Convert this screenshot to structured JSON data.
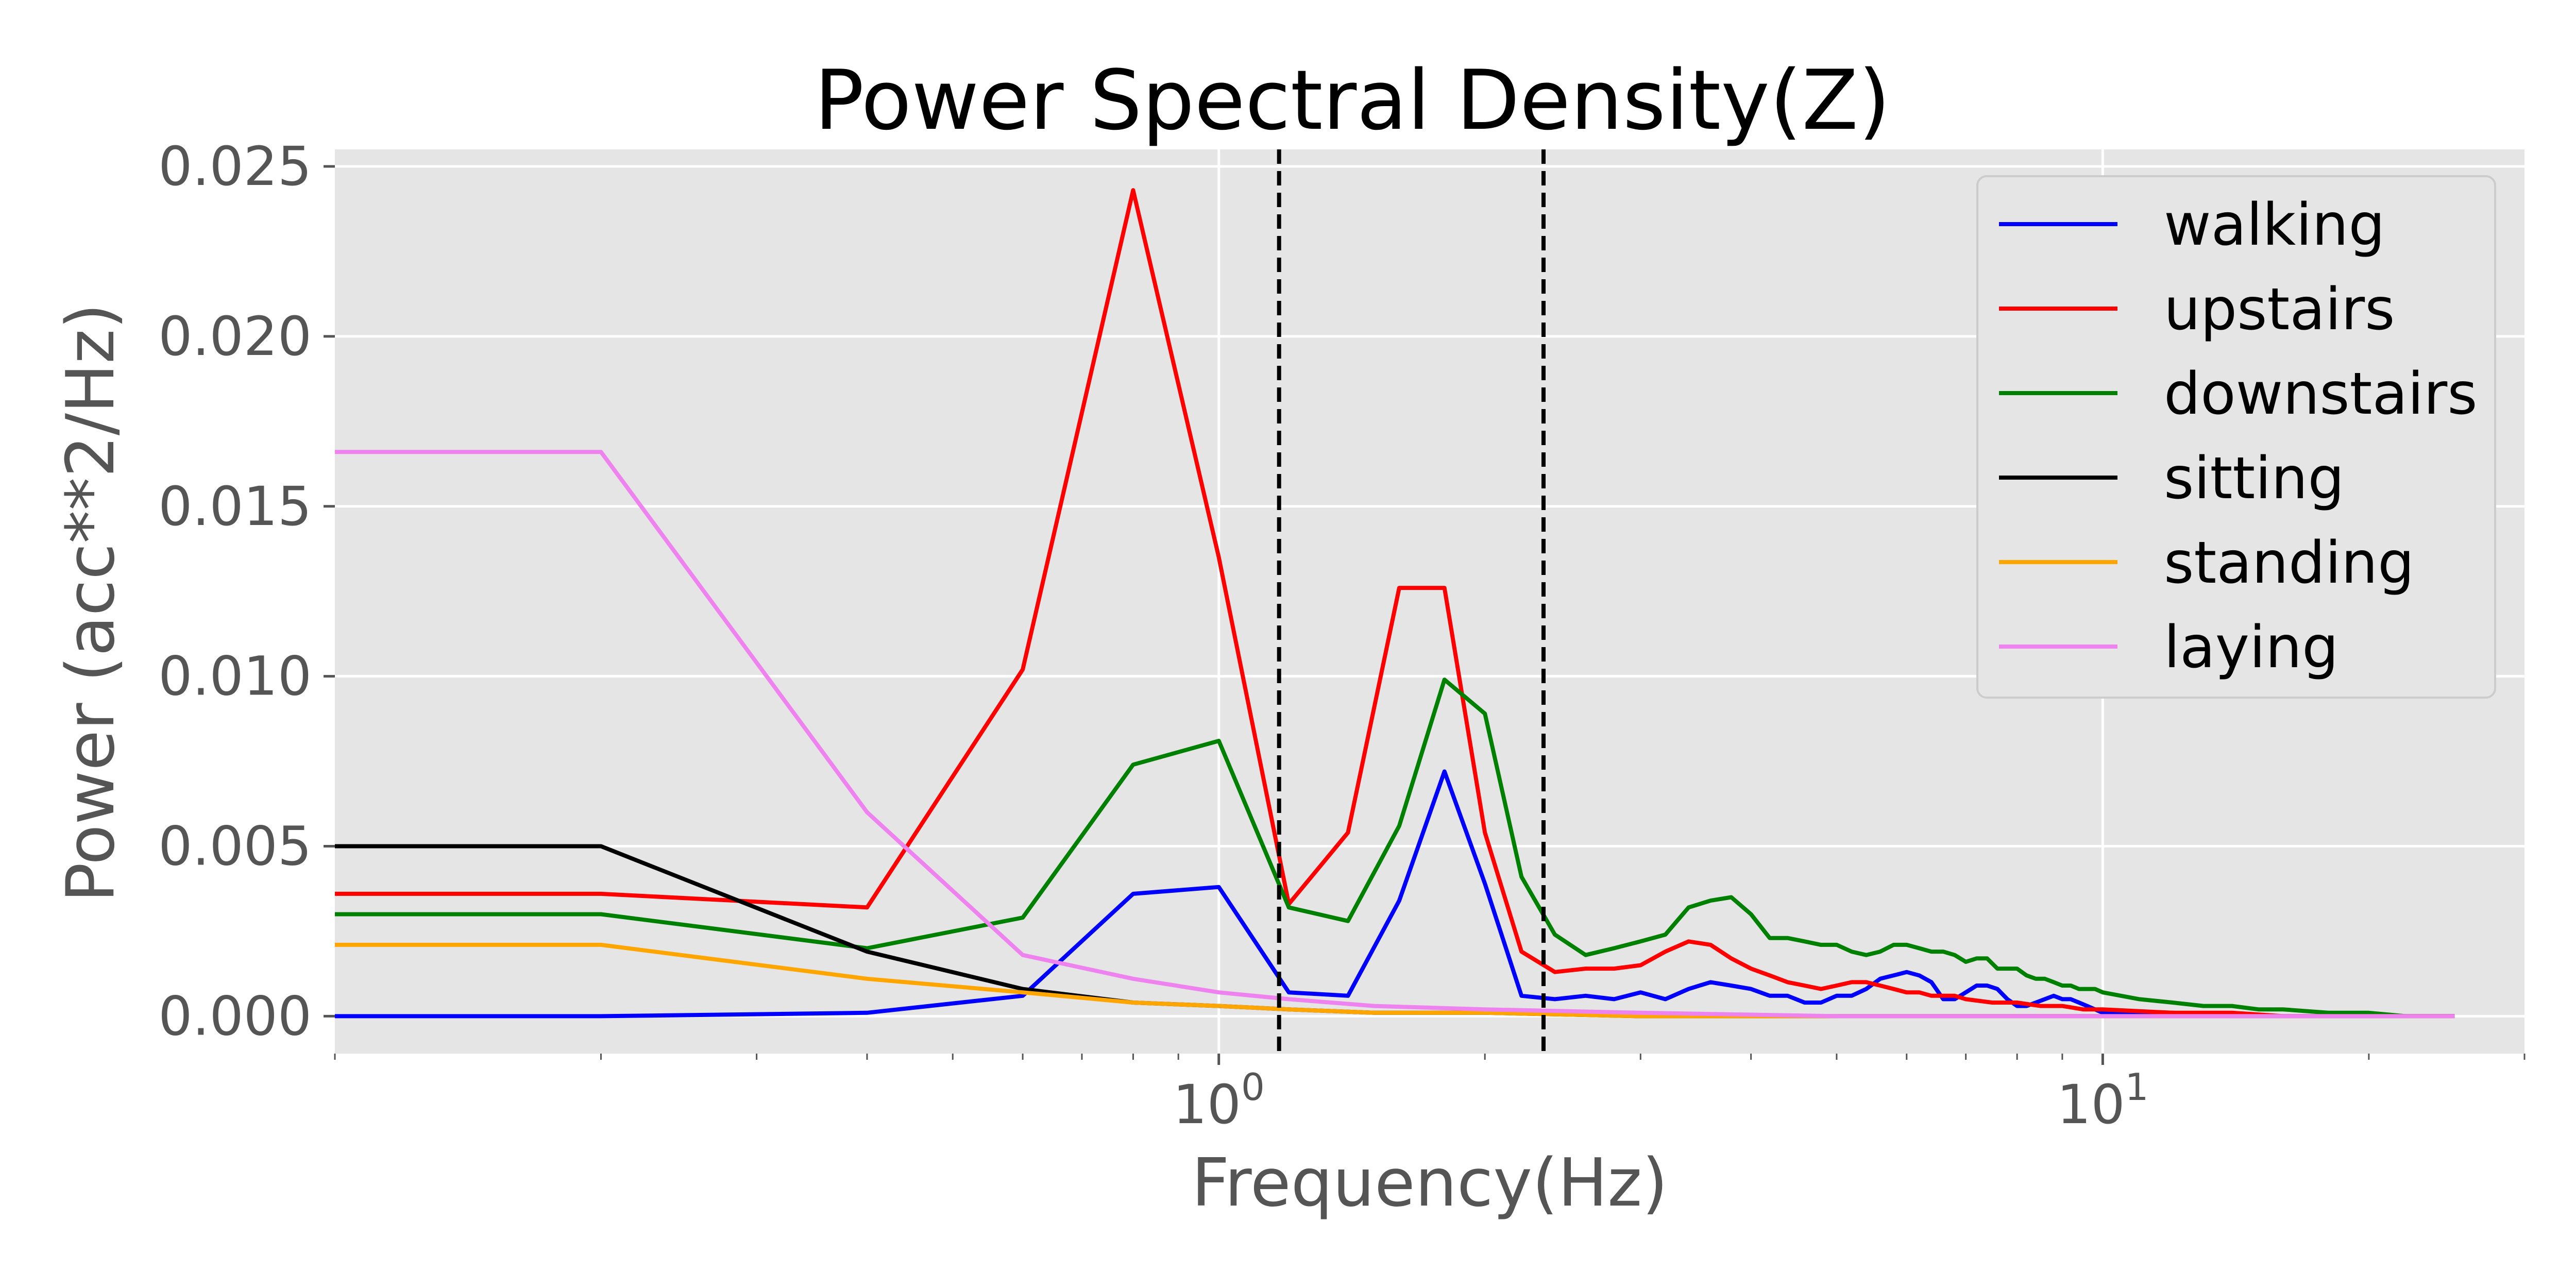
{
  "chart_data": {
    "type": "line",
    "title": "Power Spectral Density(Z)",
    "xlabel": "Frequency(Hz)",
    "ylabel": "Power (acc**2/Hz)",
    "x_scale": "log",
    "xlim": [
      0.1,
      30
    ],
    "ylim": [
      -0.0011,
      0.0255
    ],
    "yticks": [
      0.0,
      0.005,
      0.01,
      0.015,
      0.02,
      0.025
    ],
    "ytick_labels": [
      "0.000",
      "0.005",
      "0.010",
      "0.015",
      "0.020",
      "0.025"
    ],
    "xtick_labels": [
      {
        "value": 1,
        "base": "10",
        "exp": "0"
      },
      {
        "value": 10,
        "base": "10",
        "exp": "1"
      }
    ],
    "vlines": [
      1.17,
      2.33
    ],
    "grid": true,
    "legend_position": "top-right",
    "series": [
      {
        "name": "walking",
        "color": "#0000ff",
        "x": [
          0.1,
          0.2,
          0.4,
          0.6,
          0.8,
          1.0,
          1.2,
          1.4,
          1.6,
          1.8,
          2.0,
          2.2,
          2.4,
          2.6,
          2.8,
          3.0,
          3.2,
          3.4,
          3.6,
          3.8,
          4.0,
          4.2,
          4.4,
          4.6,
          4.8,
          5.0,
          5.2,
          5.4,
          5.6,
          5.8,
          6.0,
          6.2,
          6.4,
          6.6,
          6.8,
          7.0,
          7.2,
          7.4,
          7.6,
          7.8,
          8.0,
          8.2,
          8.4,
          8.6,
          8.8,
          9.0,
          9.2,
          9.4,
          9.6,
          9.8,
          10,
          12,
          14,
          16,
          18,
          20,
          22,
          25
        ],
        "y": [
          0.0,
          0.0,
          0.0001,
          0.0006,
          0.0036,
          0.0038,
          0.0007,
          0.0006,
          0.0034,
          0.0072,
          0.0039,
          0.0006,
          0.0005,
          0.0006,
          0.0005,
          0.0007,
          0.0005,
          0.0008,
          0.001,
          0.0009,
          0.0008,
          0.0006,
          0.0006,
          0.0004,
          0.0004,
          0.0006,
          0.0006,
          0.0008,
          0.0011,
          0.0012,
          0.0013,
          0.0012,
          0.001,
          0.0005,
          0.0005,
          0.0007,
          0.0009,
          0.0009,
          0.0008,
          0.0005,
          0.0003,
          0.0003,
          0.0004,
          0.0005,
          0.0006,
          0.0005,
          0.0005,
          0.0004,
          0.0003,
          0.0002,
          0.0001,
          0.0001,
          0.0,
          0.0,
          0.0,
          0.0,
          0.0,
          0.0
        ]
      },
      {
        "name": "upstairs",
        "color": "#ff0000",
        "x": [
          0.1,
          0.2,
          0.4,
          0.6,
          0.8,
          1.0,
          1.2,
          1.4,
          1.6,
          1.8,
          2.0,
          2.2,
          2.4,
          2.6,
          2.8,
          3.0,
          3.2,
          3.4,
          3.6,
          3.8,
          4.0,
          4.2,
          4.4,
          4.6,
          4.8,
          5.0,
          5.2,
          5.4,
          5.6,
          5.8,
          6.0,
          6.2,
          6.4,
          6.6,
          6.8,
          7.0,
          7.5,
          8.0,
          8.5,
          9.0,
          9.5,
          10,
          12,
          14,
          16,
          18,
          20,
          22,
          25
        ],
        "y": [
          0.0036,
          0.0036,
          0.0032,
          0.0102,
          0.0243,
          0.0135,
          0.0033,
          0.0054,
          0.0126,
          0.0126,
          0.0054,
          0.0019,
          0.0013,
          0.0014,
          0.0014,
          0.0015,
          0.0019,
          0.0022,
          0.0021,
          0.0017,
          0.0014,
          0.0012,
          0.001,
          0.0009,
          0.0008,
          0.0009,
          0.001,
          0.001,
          0.0009,
          0.0008,
          0.0007,
          0.0007,
          0.0006,
          0.0006,
          0.0006,
          0.0005,
          0.0004,
          0.0004,
          0.0003,
          0.0003,
          0.0002,
          0.0002,
          0.0001,
          0.0001,
          0.0,
          0.0,
          0.0,
          0.0,
          0.0
        ]
      },
      {
        "name": "downstairs",
        "color": "#008000",
        "x": [
          0.1,
          0.2,
          0.4,
          0.6,
          0.8,
          1.0,
          1.2,
          1.4,
          1.6,
          1.8,
          2.0,
          2.2,
          2.4,
          2.6,
          2.8,
          3.0,
          3.2,
          3.4,
          3.6,
          3.8,
          4.0,
          4.2,
          4.4,
          4.6,
          4.8,
          5.0,
          5.2,
          5.4,
          5.6,
          5.8,
          6.0,
          6.2,
          6.4,
          6.6,
          6.8,
          7.0,
          7.2,
          7.4,
          7.6,
          7.8,
          8.0,
          8.2,
          8.4,
          8.6,
          8.8,
          9.0,
          9.2,
          9.4,
          9.6,
          9.8,
          10,
          11,
          12,
          13,
          14,
          15,
          16,
          18,
          20,
          22,
          25
        ],
        "y": [
          0.003,
          0.003,
          0.002,
          0.0029,
          0.0074,
          0.0081,
          0.0032,
          0.0028,
          0.0056,
          0.0099,
          0.0089,
          0.0041,
          0.0024,
          0.0018,
          0.002,
          0.0022,
          0.0024,
          0.0032,
          0.0034,
          0.0035,
          0.003,
          0.0023,
          0.0023,
          0.0022,
          0.0021,
          0.0021,
          0.0019,
          0.0018,
          0.0019,
          0.0021,
          0.0021,
          0.002,
          0.0019,
          0.0019,
          0.0018,
          0.0016,
          0.0017,
          0.0017,
          0.0014,
          0.0014,
          0.0014,
          0.0012,
          0.0011,
          0.0011,
          0.001,
          0.0009,
          0.0009,
          0.0008,
          0.0008,
          0.0008,
          0.0007,
          0.0005,
          0.0004,
          0.0003,
          0.0003,
          0.0002,
          0.0002,
          0.0001,
          0.0001,
          0.0,
          0.0
        ]
      },
      {
        "name": "sitting",
        "color": "#000000",
        "x": [
          0.1,
          0.2,
          0.4,
          0.6,
          0.8,
          1.0,
          1.2,
          1.5,
          2.0,
          3.0,
          5.0,
          10,
          25
        ],
        "y": [
          0.005,
          0.005,
          0.0019,
          0.0008,
          0.0004,
          0.0003,
          0.0002,
          0.0001,
          0.0001,
          0.0,
          0.0,
          0.0,
          0.0
        ]
      },
      {
        "name": "standing",
        "color": "#ffa500",
        "x": [
          0.1,
          0.2,
          0.4,
          0.6,
          0.8,
          1.0,
          1.2,
          1.5,
          2.0,
          3.0,
          5.0,
          10,
          25
        ],
        "y": [
          0.0021,
          0.0021,
          0.0011,
          0.0007,
          0.0004,
          0.0003,
          0.0002,
          0.0001,
          0.0001,
          0.0,
          0.0,
          0.0,
          0.0
        ]
      },
      {
        "name": "laying",
        "color": "#ee82ee",
        "x": [
          0.1,
          0.2,
          0.4,
          0.6,
          0.8,
          1.0,
          1.2,
          1.5,
          2.0,
          3.0,
          5.0,
          10,
          25
        ],
        "y": [
          0.0166,
          0.0166,
          0.006,
          0.0018,
          0.0011,
          0.0007,
          0.0005,
          0.0003,
          0.0002,
          0.0001,
          0.0,
          0.0,
          0.0
        ]
      }
    ]
  }
}
